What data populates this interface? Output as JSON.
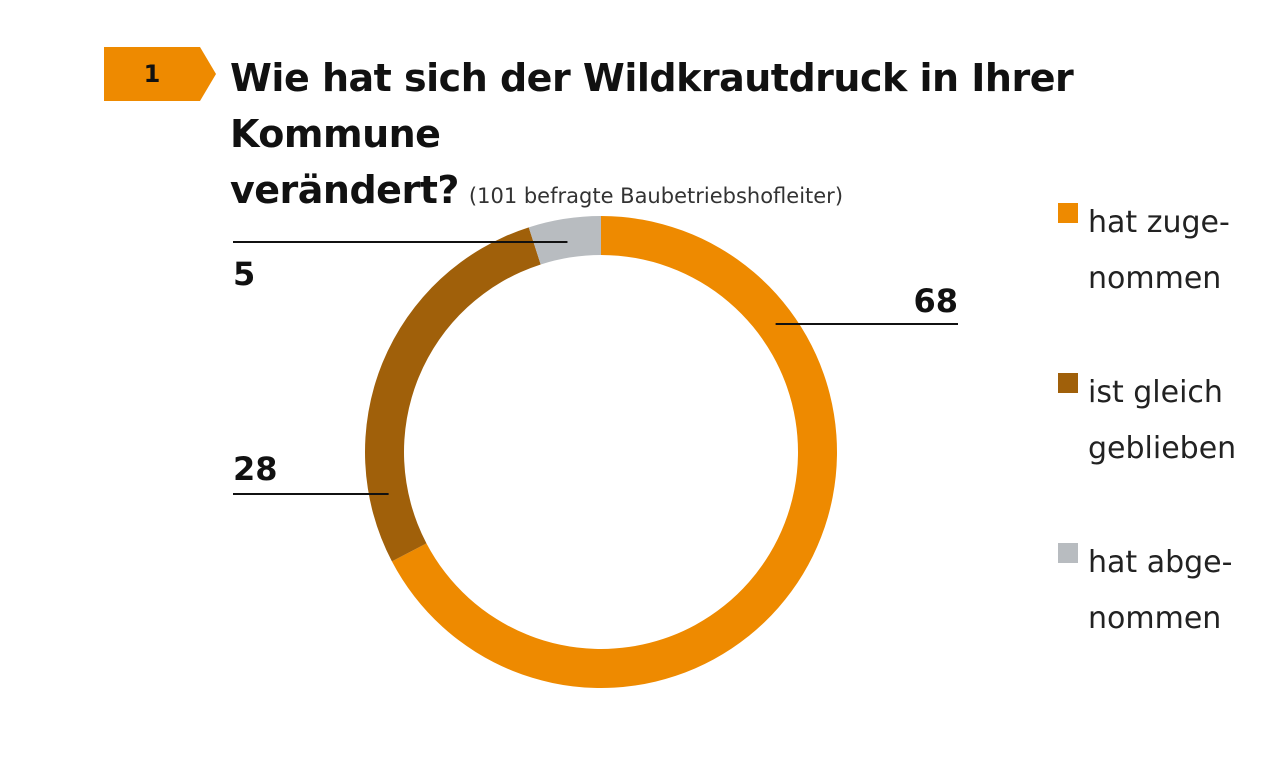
{
  "header": {
    "badge_number": "1",
    "title_line1": "Wie hat sich der Wildkrautdruck in Ihrer Kommune",
    "title_line2": "verändert?",
    "subtitle": "(101 befragte Baubetriebshofleiter)"
  },
  "colors": {
    "accent": "#ee8a00",
    "zugenommen": "#ee8a00",
    "gleich": "#a0600a",
    "abgenommen": "#b8bcc0"
  },
  "chart_data": {
    "type": "pie",
    "variant": "donut",
    "title": "",
    "legend_placement": "right",
    "slices": [
      {
        "name": "hat zugenommen",
        "legend_label": "hat zuge-\nnommen",
        "value": 68,
        "data_label": "68",
        "color": "#ee8a00"
      },
      {
        "name": "ist gleich geblieben",
        "legend_label": "ist gleich\ngeblieben",
        "value": 28,
        "data_label": "28",
        "color": "#a0600a"
      },
      {
        "name": "hat abgenommen",
        "legend_label": "hat abge-\nnommen",
        "value": 5,
        "data_label": "5",
        "color": "#b8bcc0"
      }
    ]
  }
}
